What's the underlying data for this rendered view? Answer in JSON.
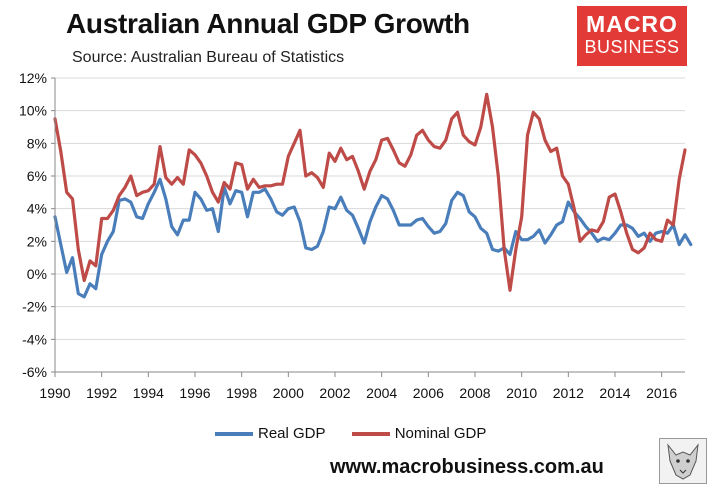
{
  "header": {
    "title": "Australian Annual GDP Growth",
    "subtitle": "Source: Australian Bureau of Statistics",
    "logo_line1": "MACRO",
    "logo_line2": "BUSINESS"
  },
  "footer": {
    "website": "www.macrobusiness.com.au"
  },
  "colors": {
    "real": "#4a7ebb",
    "nominal": "#be4b48",
    "logo": "#e23a36",
    "grid": "#d9d9d9"
  },
  "chart_data": {
    "type": "line",
    "title": "Australian Annual GDP Growth",
    "subtitle": "Source: Australian Bureau of Statistics",
    "xlabel": "",
    "ylabel": "",
    "xlim": [
      1990,
      2017
    ],
    "ylim": [
      -6,
      12
    ],
    "yticks": [
      -6,
      -4,
      -2,
      0,
      2,
      4,
      6,
      8,
      10,
      12
    ],
    "ytick_labels": [
      "-6%",
      "-4%",
      "-2%",
      "0%",
      "2%",
      "4%",
      "6%",
      "8%",
      "10%",
      "12%"
    ],
    "xticks": [
      1990,
      1992,
      1994,
      1996,
      1998,
      2000,
      2002,
      2004,
      2006,
      2008,
      2010,
      2012,
      2014,
      2016
    ],
    "xtick_labels": [
      "1990",
      "1992",
      "1994",
      "1996",
      "1998",
      "2000",
      "2002",
      "2004",
      "2006",
      "2008",
      "2010",
      "2012",
      "2014",
      "2016"
    ],
    "grid": true,
    "legend_position": "bottom",
    "series": [
      {
        "name": "Real GDP",
        "color": "#4a7ebb",
        "points": [
          [
            1990.0,
            3.5
          ],
          [
            1990.25,
            1.8
          ],
          [
            1990.5,
            0.1
          ],
          [
            1990.75,
            1.0
          ],
          [
            1991.0,
            -1.2
          ],
          [
            1991.25,
            -1.4
          ],
          [
            1991.5,
            -0.6
          ],
          [
            1991.75,
            -0.9
          ],
          [
            1992.0,
            1.2
          ],
          [
            1992.25,
            2.0
          ],
          [
            1992.5,
            2.6
          ],
          [
            1992.75,
            4.5
          ],
          [
            1993.0,
            4.6
          ],
          [
            1993.25,
            4.4
          ],
          [
            1993.5,
            3.5
          ],
          [
            1993.75,
            3.4
          ],
          [
            1994.0,
            4.3
          ],
          [
            1994.25,
            5.0
          ],
          [
            1994.5,
            5.8
          ],
          [
            1994.75,
            4.6
          ],
          [
            1995.0,
            2.9
          ],
          [
            1995.25,
            2.4
          ],
          [
            1995.5,
            3.3
          ],
          [
            1995.75,
            3.3
          ],
          [
            1996.0,
            5.0
          ],
          [
            1996.25,
            4.6
          ],
          [
            1996.5,
            3.9
          ],
          [
            1996.75,
            4.0
          ],
          [
            1997.0,
            2.6
          ],
          [
            1997.25,
            5.3
          ],
          [
            1997.5,
            4.3
          ],
          [
            1997.75,
            5.1
          ],
          [
            1998.0,
            5.0
          ],
          [
            1998.25,
            3.5
          ],
          [
            1998.5,
            5.0
          ],
          [
            1998.75,
            5.0
          ],
          [
            1999.0,
            5.2
          ],
          [
            1999.25,
            4.6
          ],
          [
            1999.5,
            3.8
          ],
          [
            1999.75,
            3.6
          ],
          [
            2000.0,
            4.0
          ],
          [
            2000.25,
            4.1
          ],
          [
            2000.5,
            3.2
          ],
          [
            2000.75,
            1.6
          ],
          [
            2001.0,
            1.5
          ],
          [
            2001.25,
            1.7
          ],
          [
            2001.5,
            2.6
          ],
          [
            2001.75,
            4.1
          ],
          [
            2002.0,
            4.0
          ],
          [
            2002.25,
            4.7
          ],
          [
            2002.5,
            3.9
          ],
          [
            2002.75,
            3.6
          ],
          [
            2003.0,
            2.8
          ],
          [
            2003.25,
            1.9
          ],
          [
            2003.5,
            3.2
          ],
          [
            2003.75,
            4.1
          ],
          [
            2004.0,
            4.8
          ],
          [
            2004.25,
            4.6
          ],
          [
            2004.5,
            3.9
          ],
          [
            2004.75,
            3.0
          ],
          [
            2005.0,
            3.0
          ],
          [
            2005.25,
            3.0
          ],
          [
            2005.5,
            3.3
          ],
          [
            2005.75,
            3.4
          ],
          [
            2006.0,
            2.9
          ],
          [
            2006.25,
            2.5
          ],
          [
            2006.5,
            2.6
          ],
          [
            2006.75,
            3.1
          ],
          [
            2007.0,
            4.5
          ],
          [
            2007.25,
            5.0
          ],
          [
            2007.5,
            4.8
          ],
          [
            2007.75,
            3.8
          ],
          [
            2008.0,
            3.5
          ],
          [
            2008.25,
            2.8
          ],
          [
            2008.5,
            2.5
          ],
          [
            2008.75,
            1.5
          ],
          [
            2009.0,
            1.4
          ],
          [
            2009.25,
            1.6
          ],
          [
            2009.5,
            1.2
          ],
          [
            2009.75,
            2.6
          ],
          [
            2010.0,
            2.1
          ],
          [
            2010.25,
            2.1
          ],
          [
            2010.5,
            2.3
          ],
          [
            2010.75,
            2.7
          ],
          [
            2011.0,
            1.9
          ],
          [
            2011.25,
            2.4
          ],
          [
            2011.5,
            3.0
          ],
          [
            2011.75,
            3.2
          ],
          [
            2012.0,
            4.4
          ],
          [
            2012.25,
            3.8
          ],
          [
            2012.5,
            3.4
          ],
          [
            2012.75,
            2.9
          ],
          [
            2013.0,
            2.5
          ],
          [
            2013.25,
            2.0
          ],
          [
            2013.5,
            2.2
          ],
          [
            2013.75,
            2.1
          ],
          [
            2014.0,
            2.5
          ],
          [
            2014.25,
            3.0
          ],
          [
            2014.5,
            3.0
          ],
          [
            2014.75,
            2.8
          ],
          [
            2015.0,
            2.3
          ],
          [
            2015.25,
            2.5
          ],
          [
            2015.5,
            2.0
          ],
          [
            2015.75,
            2.5
          ],
          [
            2016.0,
            2.6
          ],
          [
            2016.25,
            2.5
          ],
          [
            2016.5,
            3.0
          ],
          [
            2016.75,
            1.8
          ],
          [
            2017.0,
            2.4
          ],
          [
            2017.25,
            1.8
          ]
        ]
      },
      {
        "name": "Nominal GDP",
        "color": "#be4b48",
        "points": [
          [
            1990.0,
            9.5
          ],
          [
            1990.25,
            7.5
          ],
          [
            1990.5,
            5.0
          ],
          [
            1990.75,
            4.6
          ],
          [
            1991.0,
            1.5
          ],
          [
            1991.25,
            -0.4
          ],
          [
            1991.5,
            0.8
          ],
          [
            1991.75,
            0.5
          ],
          [
            1992.0,
            3.4
          ],
          [
            1992.25,
            3.4
          ],
          [
            1992.5,
            3.9
          ],
          [
            1992.75,
            4.8
          ],
          [
            1993.0,
            5.3
          ],
          [
            1993.25,
            6.0
          ],
          [
            1993.5,
            4.8
          ],
          [
            1993.75,
            5.0
          ],
          [
            1994.0,
            5.1
          ],
          [
            1994.25,
            5.5
          ],
          [
            1994.5,
            7.8
          ],
          [
            1994.75,
            5.9
          ],
          [
            1995.0,
            5.5
          ],
          [
            1995.25,
            5.9
          ],
          [
            1995.5,
            5.5
          ],
          [
            1995.75,
            7.6
          ],
          [
            1996.0,
            7.3
          ],
          [
            1996.25,
            6.8
          ],
          [
            1996.5,
            6.0
          ],
          [
            1996.75,
            5.0
          ],
          [
            1997.0,
            4.4
          ],
          [
            1997.25,
            5.6
          ],
          [
            1997.5,
            5.2
          ],
          [
            1997.75,
            6.8
          ],
          [
            1998.0,
            6.7
          ],
          [
            1998.25,
            5.2
          ],
          [
            1998.5,
            5.8
          ],
          [
            1998.75,
            5.3
          ],
          [
            1999.0,
            5.4
          ],
          [
            1999.25,
            5.4
          ],
          [
            1999.5,
            5.5
          ],
          [
            1999.75,
            5.5
          ],
          [
            2000.0,
            7.2
          ],
          [
            2000.25,
            8.0
          ],
          [
            2000.5,
            8.8
          ],
          [
            2000.75,
            6.0
          ],
          [
            2001.0,
            6.2
          ],
          [
            2001.25,
            5.9
          ],
          [
            2001.5,
            5.3
          ],
          [
            2001.75,
            7.4
          ],
          [
            2002.0,
            6.9
          ],
          [
            2002.25,
            7.7
          ],
          [
            2002.5,
            7.0
          ],
          [
            2002.75,
            7.2
          ],
          [
            2003.0,
            6.3
          ],
          [
            2003.25,
            5.2
          ],
          [
            2003.5,
            6.3
          ],
          [
            2003.75,
            7.0
          ],
          [
            2004.0,
            8.2
          ],
          [
            2004.25,
            8.3
          ],
          [
            2004.5,
            7.6
          ],
          [
            2004.75,
            6.8
          ],
          [
            2005.0,
            6.6
          ],
          [
            2005.25,
            7.3
          ],
          [
            2005.5,
            8.5
          ],
          [
            2005.75,
            8.8
          ],
          [
            2006.0,
            8.2
          ],
          [
            2006.25,
            7.8
          ],
          [
            2006.5,
            7.7
          ],
          [
            2006.75,
            8.2
          ],
          [
            2007.0,
            9.5
          ],
          [
            2007.25,
            9.9
          ],
          [
            2007.5,
            8.5
          ],
          [
            2007.75,
            8.1
          ],
          [
            2008.0,
            7.9
          ],
          [
            2008.25,
            9.0
          ],
          [
            2008.5,
            11.0
          ],
          [
            2008.75,
            9.0
          ],
          [
            2009.0,
            6.0
          ],
          [
            2009.25,
            1.5
          ],
          [
            2009.5,
            -1.0
          ],
          [
            2009.75,
            1.5
          ],
          [
            2010.0,
            3.5
          ],
          [
            2010.25,
            8.5
          ],
          [
            2010.5,
            9.9
          ],
          [
            2010.75,
            9.5
          ],
          [
            2011.0,
            8.2
          ],
          [
            2011.25,
            7.5
          ],
          [
            2011.5,
            7.7
          ],
          [
            2011.75,
            6.0
          ],
          [
            2012.0,
            5.5
          ],
          [
            2012.25,
            4.0
          ],
          [
            2012.5,
            2.0
          ],
          [
            2012.75,
            2.4
          ],
          [
            2013.0,
            2.7
          ],
          [
            2013.25,
            2.6
          ],
          [
            2013.5,
            3.2
          ],
          [
            2013.75,
            4.7
          ],
          [
            2014.0,
            4.9
          ],
          [
            2014.25,
            3.8
          ],
          [
            2014.5,
            2.5
          ],
          [
            2014.75,
            1.5
          ],
          [
            2015.0,
            1.3
          ],
          [
            2015.25,
            1.6
          ],
          [
            2015.5,
            2.5
          ],
          [
            2015.75,
            2.1
          ],
          [
            2016.0,
            2.0
          ],
          [
            2016.25,
            3.3
          ],
          [
            2016.5,
            3.0
          ],
          [
            2016.75,
            5.8
          ],
          [
            2017.0,
            7.6
          ]
        ]
      }
    ]
  }
}
